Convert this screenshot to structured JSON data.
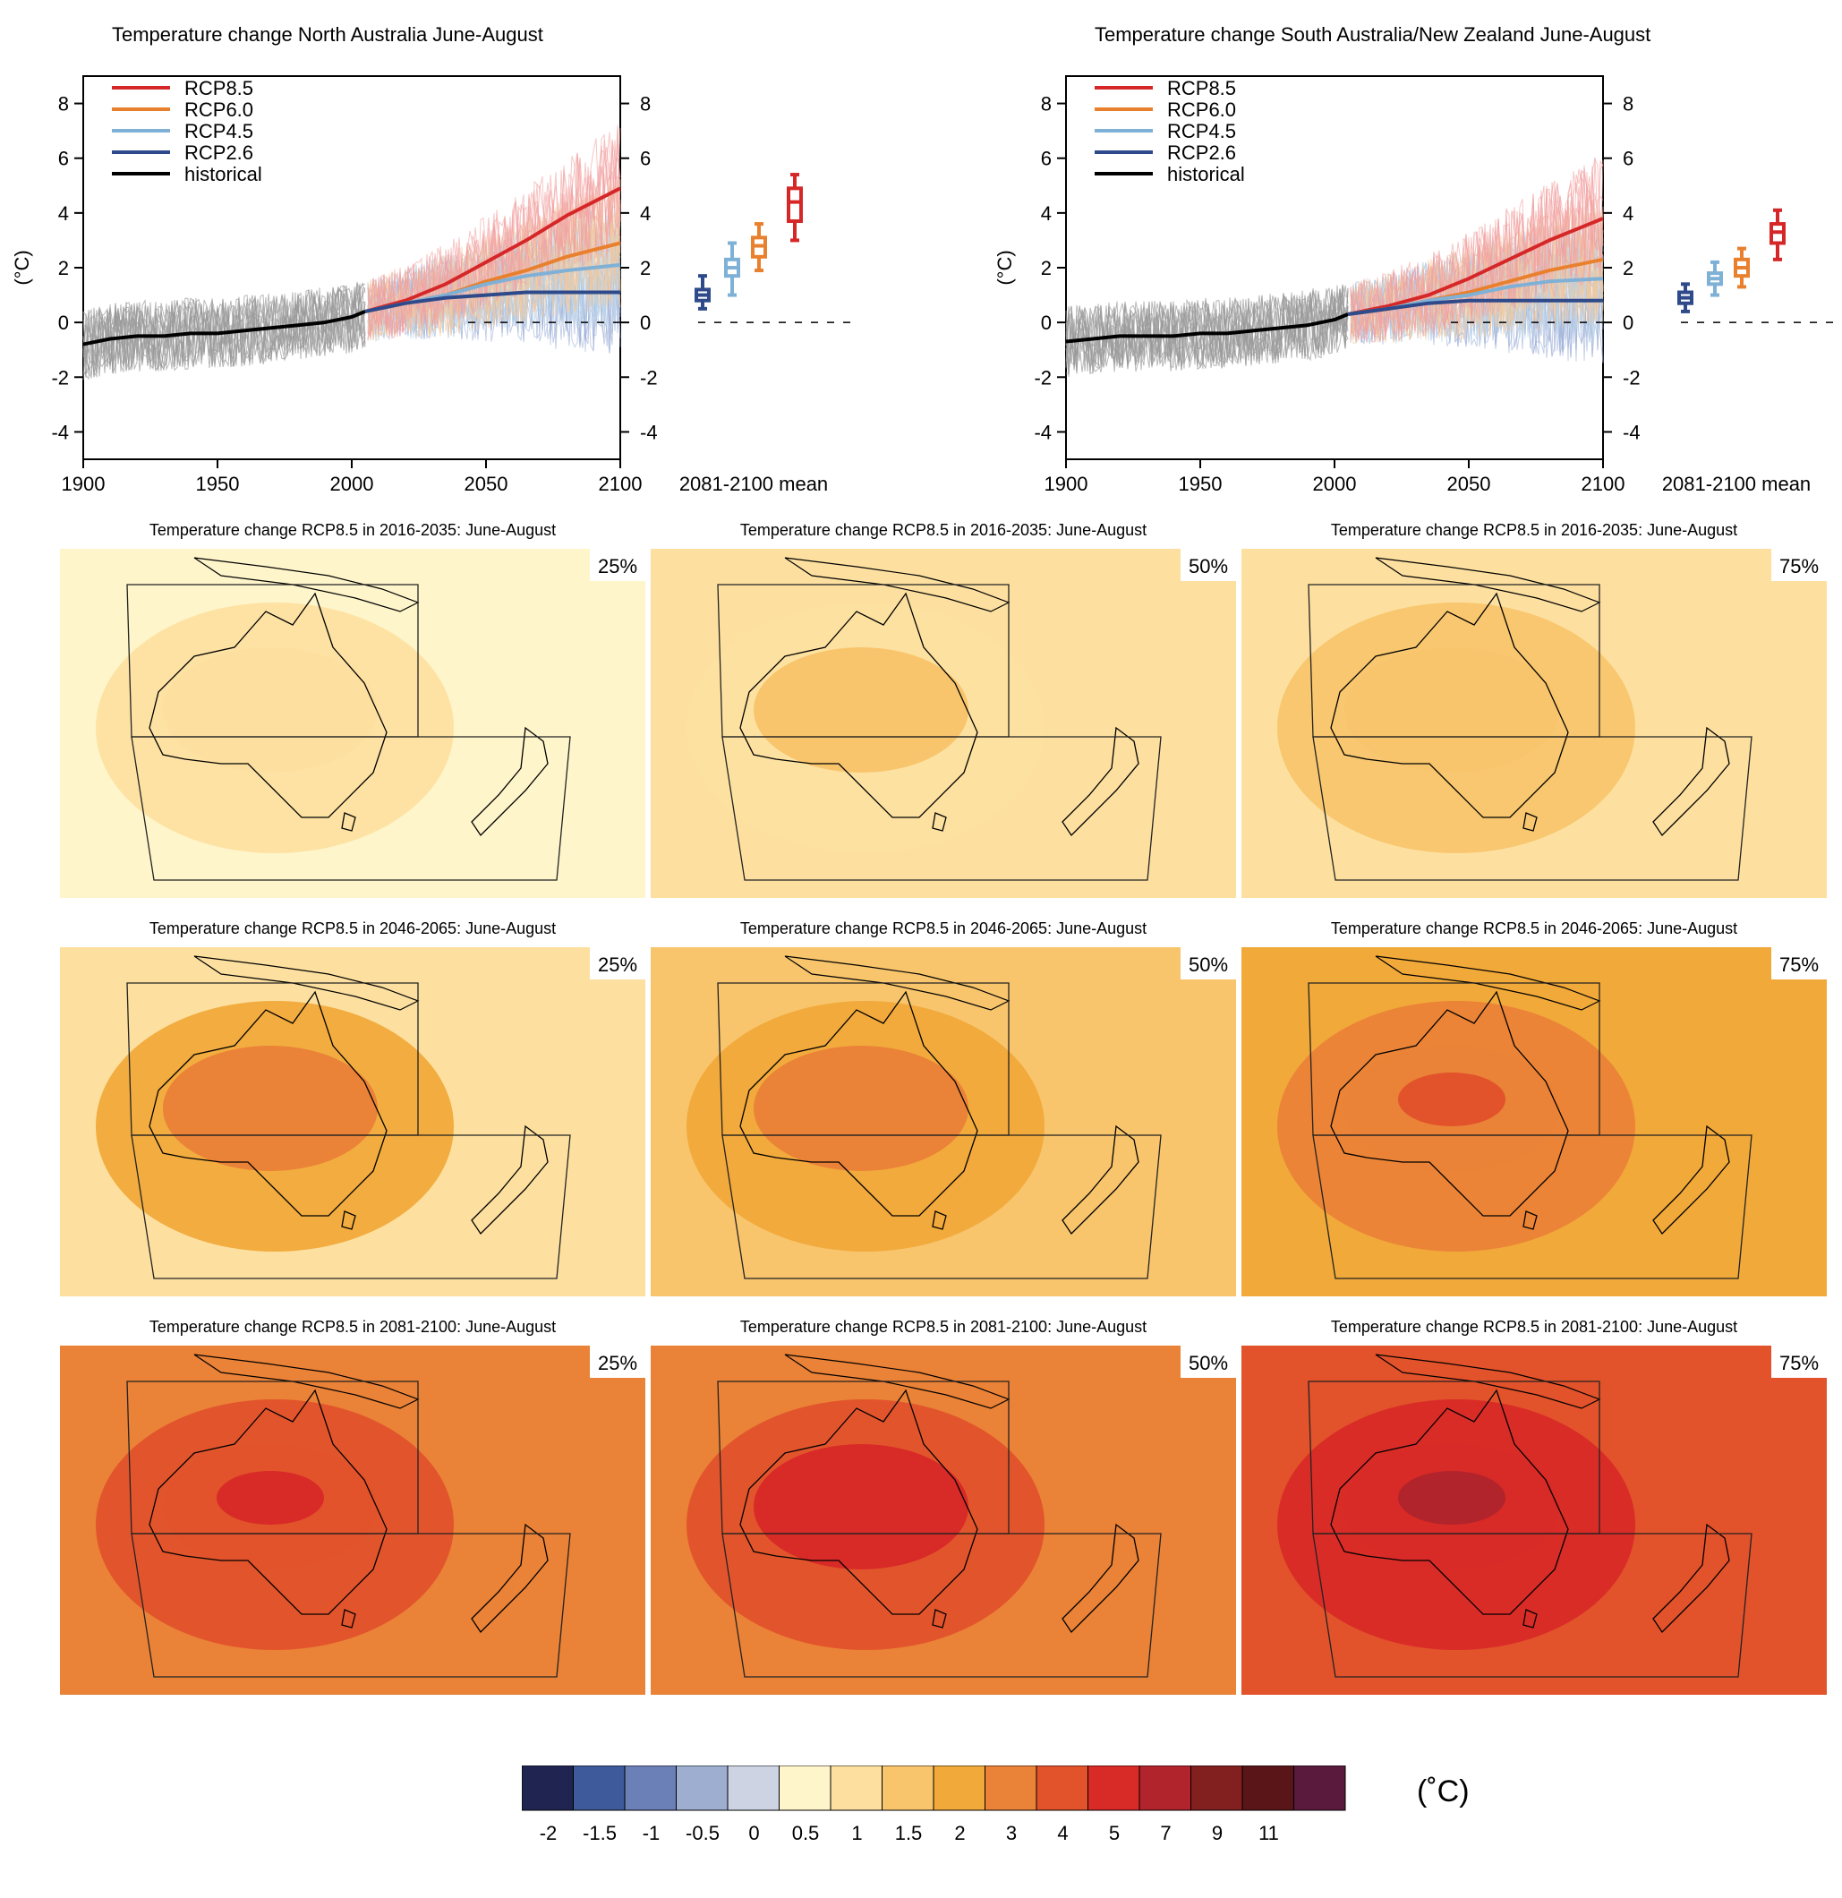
{
  "colors": {
    "rcp85": "#d62728",
    "rcp60": "#e8802e",
    "rcp45": "#7fb0d6",
    "rcp26": "#2f4a8a",
    "historical": "#000000"
  },
  "colorbar": {
    "unit": "(˚C)",
    "labels": [
      "-2",
      "-1.5",
      "-1",
      "-0.5",
      "0",
      "0.5",
      "1",
      "1.5",
      "2",
      "3",
      "4",
      "5",
      "7",
      "9",
      "11"
    ],
    "colors": [
      "#1f2450",
      "#3f5a9b",
      "#6a80b6",
      "#9daed0",
      "#cdd3e2",
      "#fff5cb",
      "#fde0a0",
      "#f8c56d",
      "#f1a93a",
      "#ea8237",
      "#e2522b",
      "#d82a27",
      "#b1242b",
      "#81201f",
      "#591518",
      "#5a1a3d"
    ]
  },
  "chart_data": [
    {
      "type": "line",
      "title": "Temperature change North Australia June-August",
      "ylabel": "(°C)",
      "xlim": [
        1900,
        2100
      ],
      "ylim": [
        -5,
        9
      ],
      "xticks": [
        "1900",
        "1950",
        "2000",
        "2050",
        "2100"
      ],
      "yticks": [
        "-4",
        "-2",
        "0",
        "2",
        "4",
        "6",
        "8"
      ],
      "legend": [
        "RCP8.5",
        "RCP6.0",
        "RCP4.5",
        "RCP2.6",
        "historical"
      ],
      "legend_placement": "top-left",
      "series": [
        {
          "name": "historical",
          "x": [
            1900,
            1910,
            1920,
            1930,
            1940,
            1950,
            1960,
            1970,
            1980,
            1990,
            2000,
            2005
          ],
          "y": [
            -0.8,
            -0.6,
            -0.5,
            -0.5,
            -0.4,
            -0.4,
            -0.3,
            -0.2,
            -0.1,
            0.0,
            0.2,
            0.4
          ]
        },
        {
          "name": "RCP8.5",
          "x": [
            2005,
            2020,
            2035,
            2050,
            2065,
            2080,
            2100
          ],
          "y": [
            0.4,
            0.8,
            1.4,
            2.2,
            3.0,
            3.9,
            4.9
          ]
        },
        {
          "name": "RCP6.0",
          "x": [
            2005,
            2020,
            2035,
            2050,
            2065,
            2080,
            2100
          ],
          "y": [
            0.4,
            0.7,
            1.0,
            1.5,
            1.9,
            2.4,
            2.9
          ]
        },
        {
          "name": "RCP4.5",
          "x": [
            2005,
            2020,
            2035,
            2050,
            2065,
            2080,
            2100
          ],
          "y": [
            0.4,
            0.7,
            1.0,
            1.4,
            1.7,
            1.9,
            2.1
          ]
        },
        {
          "name": "RCP2.6",
          "x": [
            2005,
            2020,
            2035,
            2050,
            2065,
            2080,
            2100
          ],
          "y": [
            0.4,
            0.7,
            0.9,
            1.0,
            1.1,
            1.1,
            1.1
          ]
        }
      ],
      "boxes_label": "2081-2100 mean",
      "boxes": [
        {
          "name": "RCP2.6",
          "min": 0.5,
          "q1": 0.8,
          "median": 1.0,
          "q3": 1.2,
          "max": 1.7
        },
        {
          "name": "RCP4.5",
          "min": 1.0,
          "q1": 1.7,
          "median": 2.0,
          "q3": 2.3,
          "max": 2.9
        },
        {
          "name": "RCP6.0",
          "min": 1.9,
          "q1": 2.4,
          "median": 2.8,
          "q3": 3.1,
          "max": 3.6
        },
        {
          "name": "RCP8.5",
          "min": 3.0,
          "q1": 3.7,
          "median": 4.4,
          "q3": 4.9,
          "max": 5.4
        }
      ]
    },
    {
      "type": "line",
      "title": "Temperature change South Australia/New Zealand June-August",
      "ylabel": "(°C)",
      "xlim": [
        1900,
        2100
      ],
      "ylim": [
        -5,
        9
      ],
      "xticks": [
        "1900",
        "1950",
        "2000",
        "2050",
        "2100"
      ],
      "yticks": [
        "-4",
        "-2",
        "0",
        "2",
        "4",
        "6",
        "8"
      ],
      "legend": [
        "RCP8.5",
        "RCP6.0",
        "RCP4.5",
        "RCP2.6",
        "historical"
      ],
      "legend_placement": "top-left",
      "series": [
        {
          "name": "historical",
          "x": [
            1900,
            1910,
            1920,
            1930,
            1940,
            1950,
            1960,
            1970,
            1980,
            1990,
            2000,
            2005
          ],
          "y": [
            -0.7,
            -0.6,
            -0.5,
            -0.5,
            -0.5,
            -0.4,
            -0.4,
            -0.3,
            -0.2,
            -0.1,
            0.1,
            0.3
          ]
        },
        {
          "name": "RCP8.5",
          "x": [
            2005,
            2020,
            2035,
            2050,
            2065,
            2080,
            2100
          ],
          "y": [
            0.3,
            0.6,
            1.0,
            1.6,
            2.3,
            3.0,
            3.8
          ]
        },
        {
          "name": "RCP6.0",
          "x": [
            2005,
            2020,
            2035,
            2050,
            2065,
            2080,
            2100
          ],
          "y": [
            0.3,
            0.5,
            0.8,
            1.1,
            1.5,
            1.9,
            2.3
          ]
        },
        {
          "name": "RCP4.5",
          "x": [
            2005,
            2020,
            2035,
            2050,
            2065,
            2080,
            2100
          ],
          "y": [
            0.3,
            0.5,
            0.8,
            1.0,
            1.3,
            1.5,
            1.6
          ]
        },
        {
          "name": "RCP2.6",
          "x": [
            2005,
            2020,
            2035,
            2050,
            2065,
            2080,
            2100
          ],
          "y": [
            0.3,
            0.5,
            0.7,
            0.8,
            0.8,
            0.8,
            0.8
          ]
        }
      ],
      "boxes_label": "2081-2100 mean",
      "boxes": [
        {
          "name": "RCP2.6",
          "min": 0.4,
          "q1": 0.7,
          "median": 0.9,
          "q3": 1.1,
          "max": 1.4
        },
        {
          "name": "RCP4.5",
          "min": 1.0,
          "q1": 1.4,
          "median": 1.6,
          "q3": 1.8,
          "max": 2.2
        },
        {
          "name": "RCP6.0",
          "min": 1.3,
          "q1": 1.7,
          "median": 2.0,
          "q3": 2.3,
          "max": 2.7
        },
        {
          "name": "RCP8.5",
          "min": 2.3,
          "q1": 2.9,
          "median": 3.3,
          "q3": 3.6,
          "max": 4.1
        }
      ]
    }
  ],
  "maps": {
    "rows": [
      {
        "title": "Temperature change RCP8.5 in 2016-2035: June-August",
        "panels": [
          {
            "pct": "25%",
            "bg": "#fff5cb",
            "land": "#fde0a0",
            "core": "#fde0a0",
            "hot": "#fde0a0"
          },
          {
            "pct": "50%",
            "bg": "#fde0a0",
            "land": "#fde0a0",
            "core": "#f8c56d",
            "hot": "#f8c56d"
          },
          {
            "pct": "75%",
            "bg": "#fde0a0",
            "land": "#f8c56d",
            "core": "#f8c56d",
            "hot": "#f8c56d"
          }
        ]
      },
      {
        "title": "Temperature change RCP8.5 in 2046-2065: June-August",
        "panels": [
          {
            "pct": "25%",
            "bg": "#fde0a0",
            "land": "#f1a93a",
            "core": "#ea8237",
            "hot": "#ea8237"
          },
          {
            "pct": "50%",
            "bg": "#f8c56d",
            "land": "#f1a93a",
            "core": "#ea8237",
            "hot": "#ea8237"
          },
          {
            "pct": "75%",
            "bg": "#f1a93a",
            "land": "#ea8237",
            "core": "#ea8237",
            "hot": "#e2522b"
          }
        ]
      },
      {
        "title": "Temperature change RCP8.5 in 2081-2100: June-August",
        "panels": [
          {
            "pct": "25%",
            "bg": "#ea8237",
            "land": "#e2522b",
            "core": "#e2522b",
            "hot": "#d82a27"
          },
          {
            "pct": "50%",
            "bg": "#ea8237",
            "land": "#e2522b",
            "core": "#d82a27",
            "hot": "#d82a27"
          },
          {
            "pct": "75%",
            "bg": "#e2522b",
            "land": "#d82a27",
            "core": "#d82a27",
            "hot": "#b1242b"
          }
        ]
      }
    ]
  }
}
